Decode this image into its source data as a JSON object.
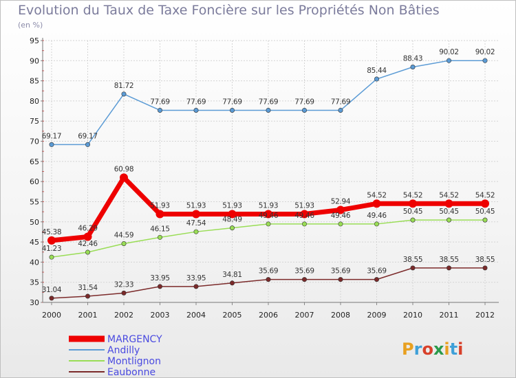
{
  "chart_data": {
    "type": "line",
    "title": "Evolution du Taux de Taxe Foncière sur les Propriétés Non Bâties",
    "ylabel": "(en %)",
    "ylim": [
      30,
      95
    ],
    "yticks": [
      30,
      35,
      40,
      45,
      50,
      55,
      60,
      65,
      70,
      75,
      80,
      85,
      90,
      95
    ],
    "categories": [
      "2000",
      "2001",
      "2002",
      "2003",
      "2004",
      "2005",
      "2006",
      "2007",
      "2008",
      "2009",
      "2010",
      "2011",
      "2012"
    ],
    "series": [
      {
        "name": "MARGENCY",
        "color": "#ee0000",
        "values": [
          45.38,
          46.29,
          60.98,
          51.93,
          51.93,
          51.93,
          51.93,
          51.93,
          52.94,
          54.52,
          54.52,
          54.52,
          54.52
        ],
        "labels": [
          "45.38",
          "46.29",
          "60.98",
          "51.93",
          "51.93",
          "51.93",
          "51.93",
          "51.93",
          "52.94",
          "54.52",
          "54.52",
          "54.52",
          "54.52"
        ]
      },
      {
        "name": "Andilly",
        "color": "#5b9bd5",
        "values": [
          69.17,
          69.17,
          81.72,
          77.69,
          77.69,
          77.69,
          77.69,
          77.69,
          77.69,
          85.44,
          88.43,
          90.02,
          90.02
        ],
        "labels": [
          "69.17",
          "69.17",
          "81.72",
          "77.69",
          "77.69",
          "77.69",
          "77.69",
          "77.69",
          "77.69",
          "85.44",
          "88.43",
          "90.02",
          "90.02"
        ]
      },
      {
        "name": "Montlignon",
        "color": "#99dd55",
        "values": [
          41.23,
          42.46,
          44.59,
          46.15,
          47.54,
          48.49,
          49.46,
          49.46,
          49.46,
          49.46,
          50.45,
          50.45,
          50.45
        ],
        "labels": [
          "41.23",
          "42.46",
          "44.59",
          "46.15",
          "47.54",
          "48.49",
          "49.46",
          "49.46",
          "49.46",
          "49.46",
          "50.45",
          "50.45",
          "50.45"
        ]
      },
      {
        "name": "Eaubonne",
        "color": "#7b2a2a",
        "values": [
          31.04,
          31.54,
          32.33,
          33.95,
          33.95,
          34.81,
          35.69,
          35.69,
          35.69,
          35.69,
          38.55,
          38.55,
          38.55
        ],
        "labels": [
          "31.04",
          "31.54",
          "32.33",
          "33.95",
          "33.95",
          "34.81",
          "35.69",
          "35.69",
          "35.69",
          "35.69",
          "38.55",
          "38.55",
          "38.55"
        ]
      }
    ],
    "legend_position": "bottom-left"
  },
  "logo": {
    "text": "Proxiti",
    "letters": [
      "P",
      "r",
      "o",
      "x",
      "i",
      "t",
      "i"
    ]
  }
}
